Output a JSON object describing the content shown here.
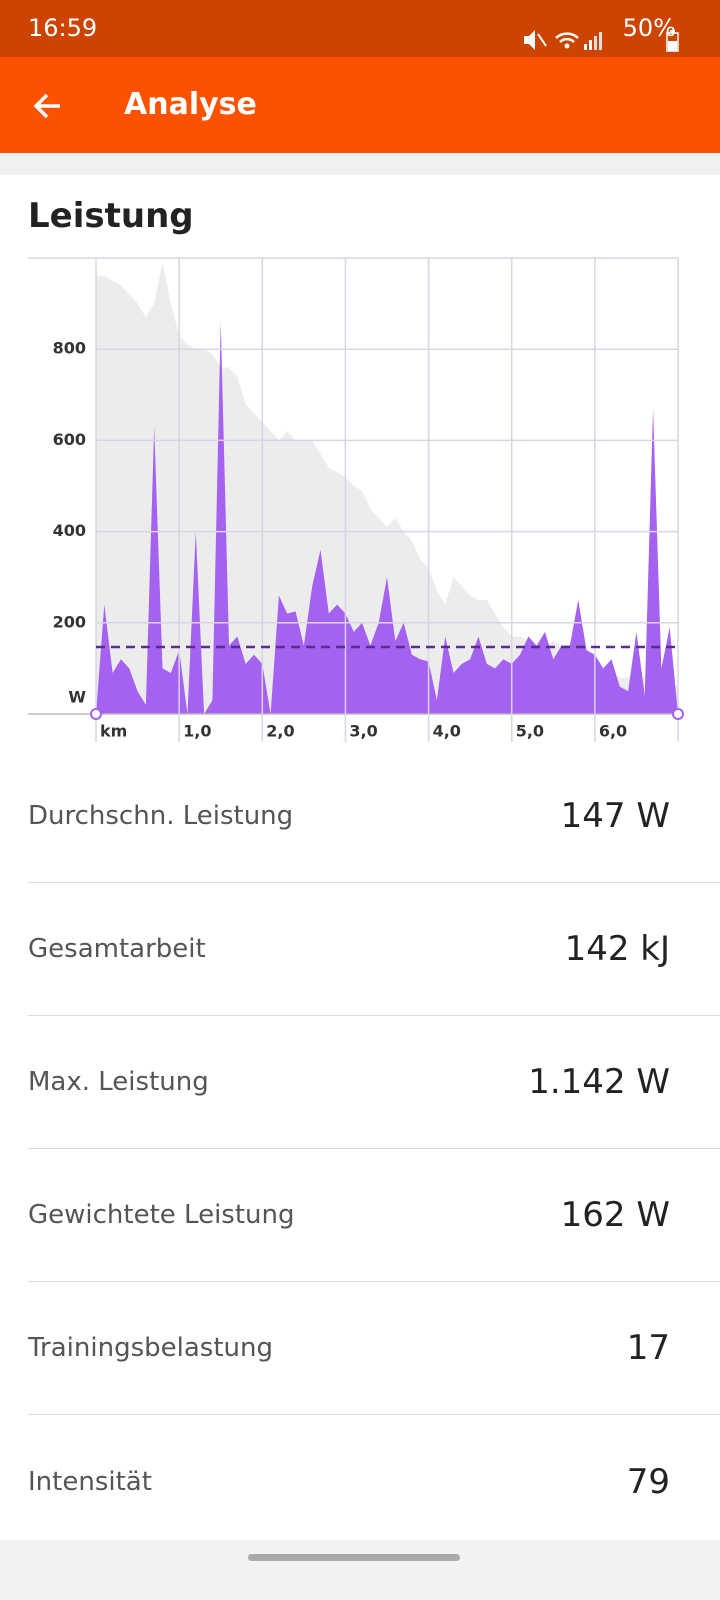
{
  "status_bar": {
    "time": "16:59",
    "battery": "50%"
  },
  "app_bar": {
    "title": "Analyse"
  },
  "section_title": "Leistung",
  "chart_data": {
    "type": "area",
    "x": [
      0,
      0.1,
      0.2,
      0.3,
      0.4,
      0.5,
      0.6,
      0.7,
      0.8,
      0.9,
      1,
      1.1,
      1.2,
      1.3,
      1.4,
      1.5,
      1.6,
      1.7,
      1.8,
      1.9,
      2,
      2.1,
      2.2,
      2.3,
      2.4,
      2.5,
      2.6,
      2.7,
      2.8,
      2.9,
      3,
      3.1,
      3.2,
      3.3,
      3.4,
      3.5,
      3.6,
      3.7,
      3.8,
      3.9,
      4,
      4.1,
      4.2,
      4.3,
      4.4,
      4.5,
      4.6,
      4.7,
      4.8,
      4.9,
      5,
      5.1,
      5.2,
      5.3,
      5.4,
      5.5,
      5.6,
      5.7,
      5.8,
      5.9,
      6,
      6.1,
      6.2,
      6.3,
      6.4,
      6.5,
      6.6,
      6.7,
      6.8,
      6.9,
      7
    ],
    "series": [
      {
        "color": "#ececec",
        "values": [
          960,
          960,
          950,
          940,
          920,
          900,
          870,
          900,
          990,
          900,
          830,
          810,
          800,
          800,
          790,
          760,
          760,
          740,
          680,
          660,
          640,
          620,
          600,
          620,
          600,
          600,
          600,
          570,
          540,
          530,
          520,
          500,
          490,
          450,
          430,
          410,
          430,
          400,
          380,
          340,
          320,
          270,
          240,
          300,
          280,
          260,
          250,
          250,
          220,
          190,
          170,
          170,
          160,
          140,
          150,
          160,
          150,
          140,
          130,
          130,
          120,
          100,
          90,
          80,
          80,
          90,
          80,
          80,
          80,
          70,
          60
        ]
      },
      {
        "color": "#a561ef",
        "values": [
          0,
          240,
          90,
          120,
          100,
          50,
          20,
          630,
          100,
          90,
          140,
          0,
          400,
          0,
          30,
          860,
          150,
          170,
          110,
          130,
          110,
          0,
          260,
          220,
          225,
          150,
          280,
          360,
          220,
          240,
          220,
          180,
          200,
          150,
          200,
          300,
          160,
          200,
          130,
          120,
          115,
          30,
          170,
          90,
          110,
          120,
          170,
          110,
          100,
          120,
          110,
          130,
          170,
          150,
          180,
          120,
          150,
          150,
          250,
          140,
          130,
          100,
          120,
          60,
          50,
          180,
          40,
          670,
          100,
          190,
          0
        ]
      }
    ],
    "average": 147,
    "average_color": "#5b2c8f",
    "xlim": [
      0,
      7
    ],
    "ylim": [
      0,
      1000
    ],
    "xticks": [
      {
        "value": 0,
        "label": "km"
      },
      {
        "value": 1,
        "label": "1,0"
      },
      {
        "value": 2,
        "label": "2,0"
      },
      {
        "value": 3,
        "label": "3,0"
      },
      {
        "value": 4,
        "label": "4,0"
      },
      {
        "value": 5,
        "label": "5,0"
      },
      {
        "value": 6,
        "label": "6,0"
      }
    ],
    "yticks": [
      {
        "value": 0,
        "label": "W"
      },
      200,
      400,
      600,
      800
    ],
    "grid": true
  },
  "stats": [
    {
      "label": "Durchschn. Leistung",
      "value": "147 W"
    },
    {
      "label": "Gesamtarbeit",
      "value": "142 kJ"
    },
    {
      "label": "Max. Leistung",
      "value": "1.142 W"
    },
    {
      "label": "Gewichtete Leistung",
      "value": "162 W"
    },
    {
      "label": "Trainingsbelastung",
      "value": "17"
    },
    {
      "label": "Intensität",
      "value": "79"
    }
  ]
}
